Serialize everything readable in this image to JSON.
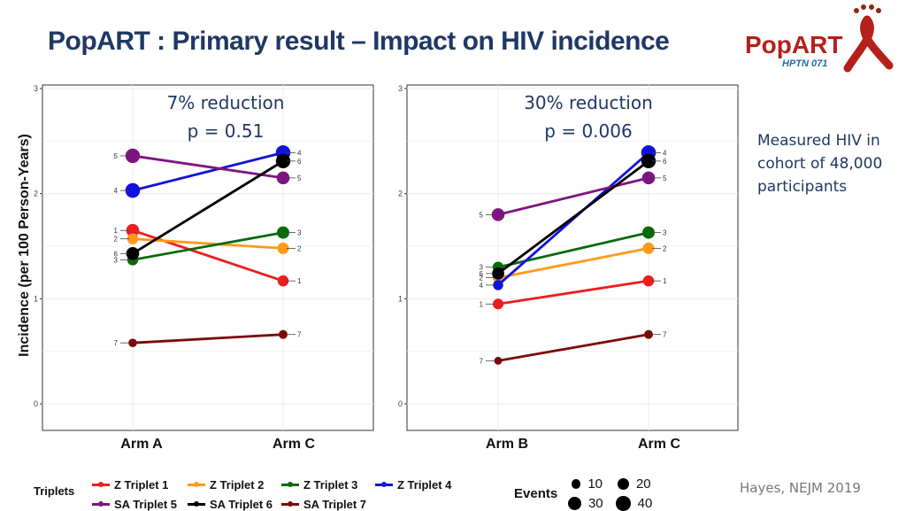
{
  "title": "PopART : Primary result – Impact on HIV incidence",
  "logo": {
    "text": "PopART",
    "subtext": "HPTN 071"
  },
  "ylabel": "Incidence (per 100 Person-Years)",
  "note": "Measured HIV in cohort of 48,000 participants",
  "citation": "Hayes, NEJM 2019",
  "colors": {
    "title": "#1f3864",
    "Z Triplet 1": "#ee1c1c",
    "Z Triplet 2": "#ff9a1a",
    "Z Triplet 3": "#0a6b0a",
    "Z Triplet 4": "#1111dd",
    "SA Triplet 5": "#7e1480",
    "SA Triplet 6": "#000000",
    "SA Triplet 7": "#7a0a0a"
  },
  "legend": {
    "title": "Triplets",
    "items": [
      "Z Triplet 1",
      "Z Triplet 2",
      "Z Triplet 3",
      "Z Triplet 4",
      "SA Triplet 5",
      "SA Triplet 6",
      "SA Triplet 7"
    ],
    "events_title": "Events",
    "events": [
      10,
      20,
      30,
      40
    ]
  },
  "chart_data": [
    {
      "type": "line",
      "annotation": [
        "7% reduction",
        "p = 0.51"
      ],
      "categories": [
        "Arm A",
        "Arm C"
      ],
      "ylim": [
        0,
        3
      ],
      "yticks": [
        0,
        1,
        2,
        3
      ],
      "grid": true,
      "series": [
        {
          "name": "Z Triplet 1",
          "label": "1",
          "values": [
            1.65,
            1.17
          ],
          "events": [
            28,
            18
          ]
        },
        {
          "name": "Z Triplet 2",
          "label": "2",
          "values": [
            1.57,
            1.48
          ],
          "events": [
            18,
            20
          ]
        },
        {
          "name": "Z Triplet 3",
          "label": "3",
          "values": [
            1.37,
            1.63
          ],
          "events": [
            18,
            25
          ]
        },
        {
          "name": "Z Triplet 4",
          "label": "4",
          "values": [
            2.03,
            2.39
          ],
          "events": [
            40,
            40
          ]
        },
        {
          "name": "SA Triplet 5",
          "label": "5",
          "values": [
            2.36,
            2.15
          ],
          "events": [
            38,
            28
          ]
        },
        {
          "name": "SA Triplet 6",
          "label": "6",
          "values": [
            1.43,
            2.31
          ],
          "events": [
            28,
            38
          ]
        },
        {
          "name": "SA Triplet 7",
          "label": "7",
          "values": [
            0.58,
            0.66
          ],
          "events": [
            8,
            9
          ]
        }
      ]
    },
    {
      "type": "line",
      "annotation": [
        "30% reduction",
        "p = 0.006"
      ],
      "categories": [
        "Arm B",
        "Arm C"
      ],
      "ylim": [
        0,
        3
      ],
      "yticks": [
        0,
        1,
        2,
        3
      ],
      "grid": true,
      "series": [
        {
          "name": "Z Triplet 1",
          "label": "1",
          "values": [
            0.95,
            1.17
          ],
          "events": [
            16,
            18
          ]
        },
        {
          "name": "Z Triplet 2",
          "label": "2",
          "values": [
            1.2,
            1.48
          ],
          "events": [
            16,
            20
          ]
        },
        {
          "name": "Z Triplet 3",
          "label": "3",
          "values": [
            1.3,
            1.63
          ],
          "events": [
            18,
            25
          ]
        },
        {
          "name": "Z Triplet 4",
          "label": "4",
          "values": [
            1.13,
            2.39
          ],
          "events": [
            14,
            40
          ]
        },
        {
          "name": "SA Triplet 5",
          "label": "5",
          "values": [
            1.8,
            2.15
          ],
          "events": [
            28,
            28
          ]
        },
        {
          "name": "SA Triplet 6",
          "label": "6",
          "values": [
            1.24,
            2.31
          ],
          "events": [
            24,
            38
          ]
        },
        {
          "name": "SA Triplet 7",
          "label": "7",
          "values": [
            0.41,
            0.66
          ],
          "events": [
            6,
            9
          ]
        }
      ]
    }
  ]
}
